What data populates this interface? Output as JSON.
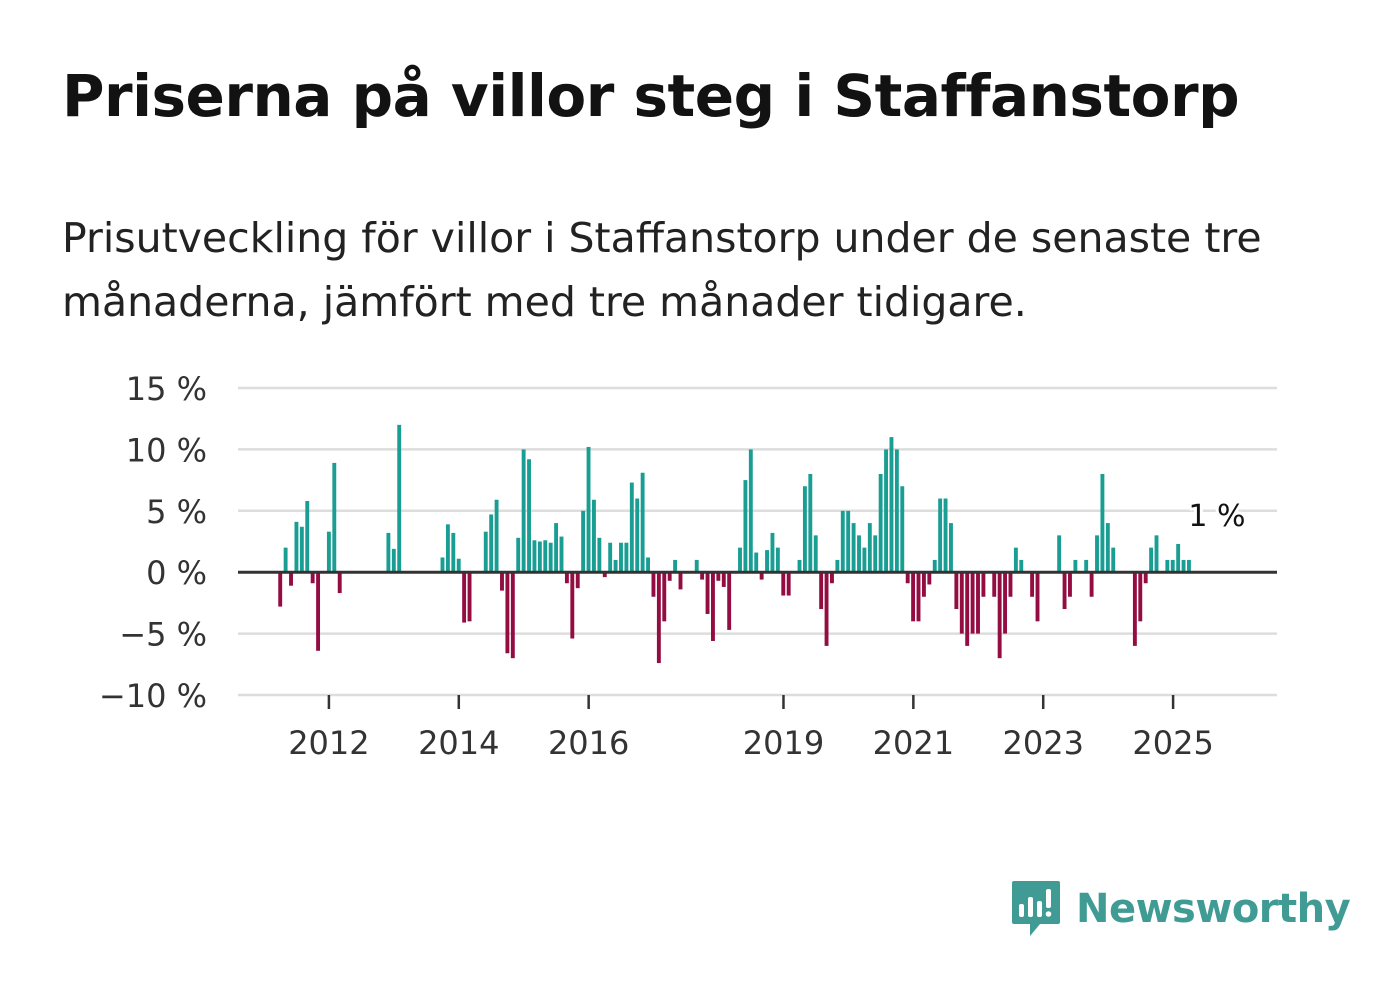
{
  "title": "Priserna på villor steg i Staffanstorp",
  "subtitle": "Prisutveckling för villor i Staffanstorp under de senaste tre månaderna, jämfört med tre månader tidigare.",
  "brand": {
    "name": "Newsworthy"
  },
  "colors": {
    "positive": "#1a9e94",
    "negative": "#930c42",
    "grid": "#dddddd",
    "zero_line": "#333333",
    "brand": "#3f9b94"
  },
  "chart_data": {
    "type": "bar",
    "series_name": "Prisutveckling (%)",
    "x_start": 2011.25,
    "x_step": 0.0833,
    "x_range": [
      2010.6,
      2026.6
    ],
    "ylim": [
      -10,
      15
    ],
    "y_ticks": [
      15,
      10,
      5,
      0,
      -5,
      -10
    ],
    "y_tick_labels": [
      "15 %",
      "10 %",
      "5 %",
      "0 %",
      "−5 %",
      "−10 %"
    ],
    "x_ticks": [
      2012,
      2014,
      2016,
      2019,
      2021,
      2023,
      2025
    ],
    "x_tick_labels": [
      "2012",
      "2014",
      "2016",
      "2019",
      "2021",
      "2023",
      "2025"
    ],
    "values": [
      -2.8,
      2.0,
      -1.1,
      4.1,
      3.7,
      5.8,
      -0.9,
      -6.4,
      0,
      3.3,
      8.9,
      -1.7,
      0,
      0,
      0,
      0,
      0,
      0,
      0,
      0,
      3.2,
      1.9,
      12.0,
      0,
      0,
      0,
      0,
      0,
      0,
      0,
      1.2,
      3.9,
      3.2,
      1.1,
      -4.1,
      -4.0,
      0,
      0,
      3.3,
      4.7,
      5.9,
      -1.5,
      -6.6,
      -7.0,
      2.8,
      10.0,
      9.2,
      2.6,
      2.5,
      2.6,
      2.4,
      4.0,
      2.9,
      -0.9,
      -5.4,
      -1.3,
      5.0,
      10.2,
      5.9,
      2.8,
      -0.4,
      2.4,
      1.0,
      2.4,
      2.4,
      7.3,
      6.0,
      8.1,
      1.2,
      -2.0,
      -7.4,
      -4.0,
      -0.7,
      1.0,
      -1.4,
      0,
      0,
      1.0,
      -0.6,
      -3.4,
      -5.6,
      -0.7,
      -1.2,
      -4.7,
      0,
      2.0,
      7.5,
      10.0,
      1.6,
      -0.6,
      1.8,
      3.2,
      2.0,
      -1.9,
      -1.9,
      0,
      1.0,
      7.0,
      8.0,
      3.0,
      -3.0,
      -6.0,
      -0.9,
      1.0,
      5.0,
      5.0,
      4.0,
      3.0,
      2.0,
      4.0,
      3.0,
      8.0,
      10.0,
      11.0,
      10.0,
      7.0,
      -0.9,
      -4.0,
      -4.0,
      -2.0,
      -1.0,
      1.0,
      6.0,
      6.0,
      4.0,
      -3.0,
      -5.0,
      -6.0,
      -5.0,
      -5.0,
      -2.0,
      0,
      -2.0,
      -7.0,
      -5.0,
      -2.0,
      2.0,
      1.0,
      0,
      -2.0,
      -4.0,
      0,
      0,
      0,
      3.0,
      -3.0,
      -2.0,
      1.0,
      0,
      1.0,
      -2.0,
      3.0,
      8.0,
      4.0,
      2.0,
      0,
      0,
      0,
      -6.0,
      -4.0,
      -0.9,
      2.0,
      3.0,
      0,
      1.0,
      1.0,
      2.3,
      1.0,
      1.0
    ],
    "annotation": {
      "label": "1 %",
      "value": 1
    }
  }
}
